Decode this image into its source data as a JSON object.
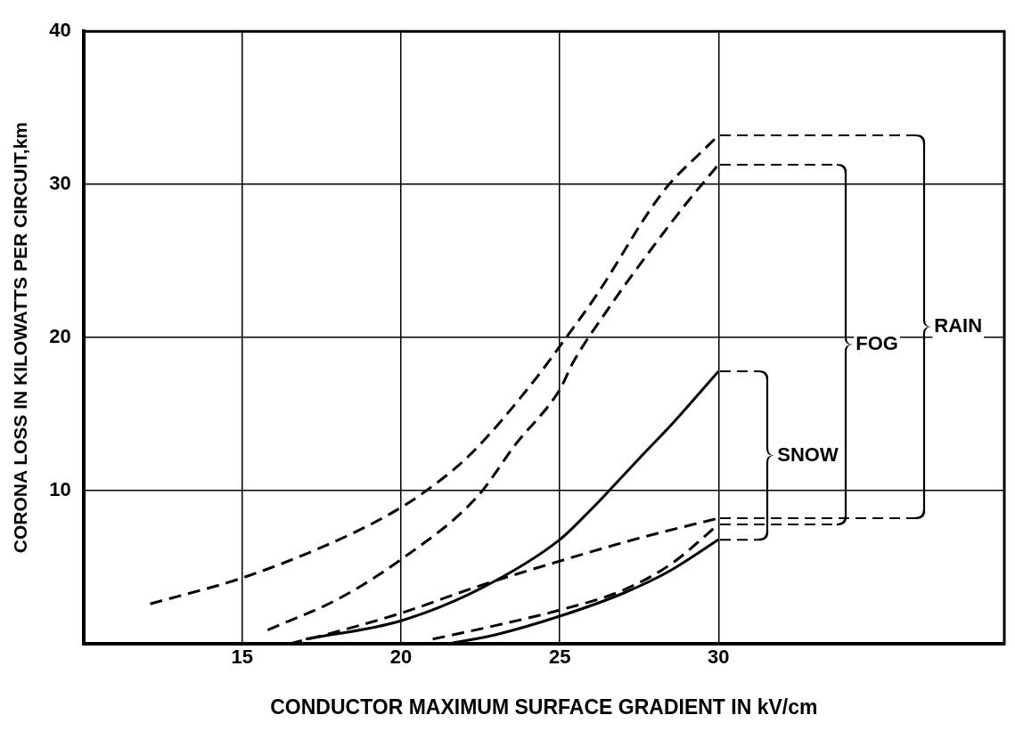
{
  "chart_data": {
    "type": "line",
    "xlabel": "CONDUCTOR MAXIMUM SURFACE GRADIENT IN kV/cm",
    "ylabel": "CORONA LOSS IN KILOWATTS PER CIRCUIT,km",
    "xlim": [
      10,
      39
    ],
    "xticks": [
      15,
      20,
      25,
      30
    ],
    "ylim": [
      0,
      40
    ],
    "yticks": [
      {
        "value": 0,
        "label": null
      },
      10,
      20,
      30,
      40
    ],
    "grid": true,
    "legend": false,
    "marker": "none",
    "series": [
      {
        "color": "#000000",
        "line_style": "dashed",
        "x": [
          12.1,
          15,
          17.5,
          19.5,
          20.8,
          22.2,
          24.2,
          25.2,
          26.2,
          27.8,
          28.4,
          29.5,
          30
        ],
        "values": [
          2.6,
          4.3,
          6.3,
          8.3,
          10,
          12.4,
          17.2,
          20,
          22.9,
          28.2,
          29.9,
          32.2,
          33.2
        ]
      },
      {
        "color": "#000000",
        "line_style": "dashed",
        "x": [
          15.8,
          18,
          20,
          22.4,
          23.6,
          25,
          25.4,
          26.5,
          28,
          29,
          30
        ],
        "values": [
          0.9,
          2.9,
          5.5,
          9.6,
          13,
          16.6,
          18.3,
          21.8,
          26.1,
          28.8,
          31.3
        ]
      },
      {
        "color": "#000000",
        "line_style": "solid",
        "x": [
          17,
          20,
          22.5,
          25,
          26,
          26.6,
          27.5,
          28.6,
          30
        ],
        "values": [
          0.3,
          1.5,
          3.6,
          6.8,
          8.8,
          10.1,
          12.1,
          14.5,
          17.8
        ]
      },
      {
        "color": "#000000",
        "line_style": "dashed",
        "x": [
          16.5,
          18,
          20,
          22.5,
          25,
          27.5,
          30
        ],
        "values": [
          0,
          0.8,
          2.0,
          3.8,
          5.4,
          6.9,
          8.2
        ]
      },
      {
        "color": "#000000",
        "line_style": "dashed",
        "x": [
          21,
          23,
          25,
          27,
          28.5,
          30
        ],
        "values": [
          0.3,
          1.2,
          2.2,
          3.5,
          5.2,
          7.8
        ]
      },
      {
        "color": "#000000",
        "line_style": "solid",
        "x": [
          21.5,
          23,
          25,
          27,
          28.5,
          30
        ],
        "values": [
          0,
          0.6,
          1.8,
          3.3,
          4.8,
          6.8
        ]
      }
    ],
    "annotations": [
      "SNOW",
      "FOG",
      "RAIN"
    ]
  }
}
